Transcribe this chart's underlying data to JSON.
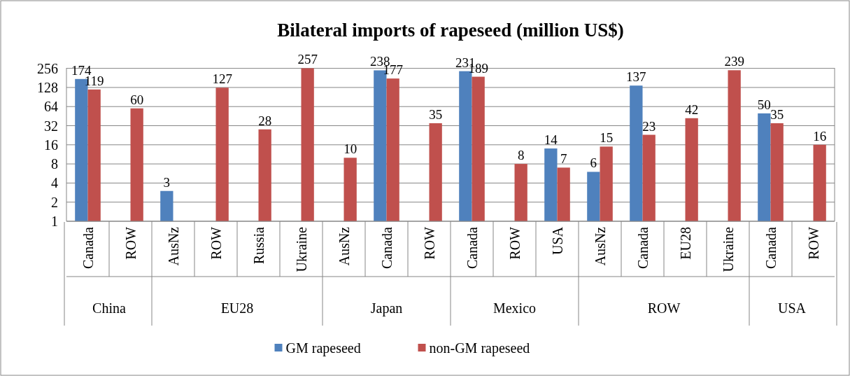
{
  "chart_data": {
    "type": "bar",
    "title": "Bilateral imports of rapeseed (million US$)",
    "categories": [
      "Canada",
      "ROW",
      "AusNz",
      "ROW",
      "Russia",
      "Ukraine",
      "AusNz",
      "Canada",
      "ROW",
      "Canada",
      "ROW",
      "USA",
      "AusNz",
      "Canada",
      "EU28",
      "Ukraine",
      "Canada",
      "ROW"
    ],
    "annotations": [
      "China",
      "EU28",
      "Japan",
      "Mexico",
      "ROW",
      "USA"
    ],
    "series": [
      {
        "name": "GM rapeseed",
        "color": "#4f81bd",
        "values": [
          174,
          null,
          3,
          null,
          null,
          null,
          null,
          238,
          null,
          231,
          null,
          14,
          6,
          137,
          null,
          null,
          50,
          null
        ],
        "value_labels": [
          "174",
          null,
          "3",
          null,
          null,
          null,
          null,
          "238",
          null,
          "231",
          null,
          "14",
          "6",
          "137",
          null,
          null,
          "50",
          null
        ]
      },
      {
        "name": "non-GM rapeseed",
        "color": "#c0504d",
        "values": [
          119,
          60,
          null,
          127,
          28,
          257,
          10,
          177,
          35,
          189,
          8,
          7,
          15,
          23,
          42,
          239,
          35,
          16
        ],
        "value_labels": [
          "119",
          "60",
          null,
          "127",
          "28",
          "257",
          "10",
          "177",
          "35",
          "189",
          "8",
          "7",
          "15",
          "23",
          "42",
          "239",
          "35",
          "16"
        ]
      }
    ],
    "log": true,
    "ylim": [
      1,
      260
    ],
    "yticks": [
      1,
      2,
      4,
      8,
      16,
      32,
      64,
      128,
      256
    ],
    "grid": "y",
    "legend": "bottom"
  }
}
